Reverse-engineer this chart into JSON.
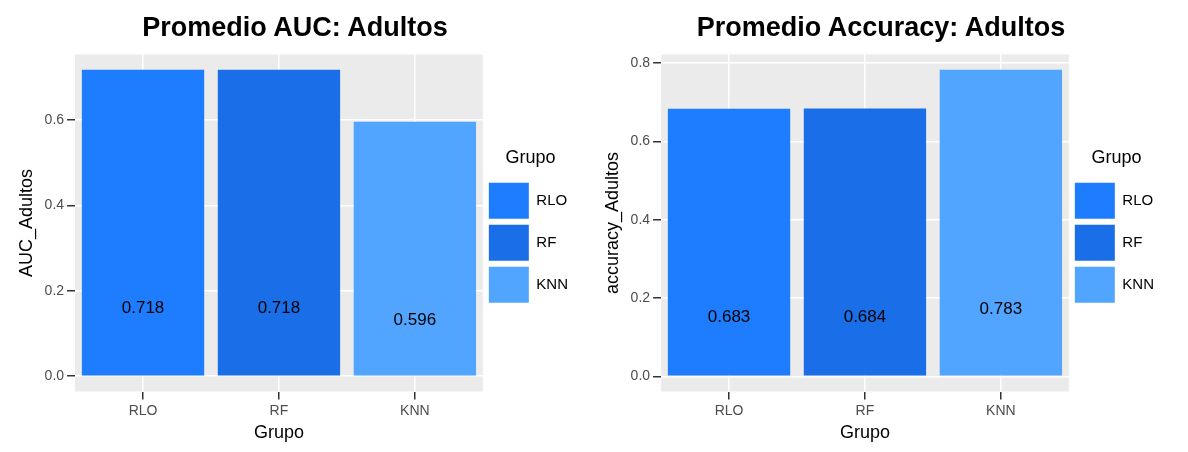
{
  "chart_data": [
    {
      "type": "bar",
      "title": "Promedio AUC: Adultos",
      "xlabel": "Grupo",
      "ylabel": "AUC_Adultos",
      "legend_title": "Grupo",
      "categories": [
        "RLO",
        "RF",
        "KNN"
      ],
      "series": [
        {
          "name": "RLO",
          "color": "#1e7cff",
          "values": [
            0.718,
            null,
            null
          ]
        },
        {
          "name": "RF",
          "color": "#1a6fe8",
          "values": [
            null,
            0.718,
            null
          ]
        },
        {
          "name": "KNN",
          "color": "#51a5ff",
          "values": [
            null,
            null,
            0.596
          ]
        }
      ],
      "stacked": true,
      "ylim": [
        -0.036,
        0.754
      ],
      "yticks": [
        {
          "value": 0,
          "label": "0.0"
        },
        {
          "value": 0.2,
          "label": "0.2"
        },
        {
          "value": 0.4,
          "label": "0.4"
        },
        {
          "value": 0.6,
          "label": "0.6"
        }
      ],
      "grid": true,
      "legend": "right",
      "data_labels": true
    },
    {
      "type": "bar",
      "title": "Promedio Accuracy: Adultos",
      "xlabel": "Grupo",
      "ylabel": "accuracy_Adultos",
      "legend_title": "Grupo",
      "categories": [
        "RLO",
        "RF",
        "KNN"
      ],
      "series": [
        {
          "name": "RLO",
          "color": "#1e7cff",
          "values": [
            0.683,
            null,
            null
          ]
        },
        {
          "name": "RF",
          "color": "#1a6fe8",
          "values": [
            null,
            0.684,
            null
          ]
        },
        {
          "name": "KNN",
          "color": "#51a5ff",
          "values": [
            null,
            null,
            0.783
          ]
        }
      ],
      "stacked": true,
      "ylim": [
        -0.039,
        0.822
      ],
      "yticks": [
        {
          "value": 0,
          "label": "0.0"
        },
        {
          "value": 0.2,
          "label": "0.2"
        },
        {
          "value": 0.4,
          "label": "0.4"
        },
        {
          "value": 0.6,
          "label": "0.6"
        },
        {
          "value": 0.8,
          "label": "0.8"
        }
      ],
      "grid": true,
      "legend": "right",
      "data_labels": true
    }
  ]
}
